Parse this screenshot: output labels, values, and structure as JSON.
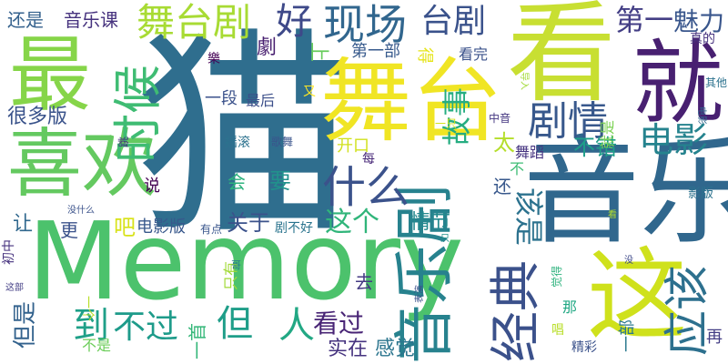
{
  "word_cloud": {
    "background": "#ffffff",
    "words": [
      {
        "text": "猫",
        "color": "#2f6e8e"
      },
      {
        "text": "Memory",
        "color": "#4cc26c"
      },
      {
        "text": "音乐",
        "color": "#30678d"
      },
      {
        "text": "看",
        "color": "#c8df32"
      },
      {
        "text": "舞台",
        "color": "#f0e524"
      },
      {
        "text": "就",
        "color": "#482071"
      },
      {
        "text": "这",
        "color": "#cfe11c"
      },
      {
        "text": "音乐剧",
        "color": "#27828e"
      },
      {
        "text": "最",
        "color": "#86d549"
      },
      {
        "text": "喜欢",
        "color": "#64c960"
      },
      {
        "text": "时候",
        "color": "#3fbc73"
      },
      {
        "text": "经典",
        "color": "#3b518b"
      },
      {
        "text": "应该",
        "color": "#2d708e"
      },
      {
        "text": "舞台剧",
        "color": "#a8db34"
      },
      {
        "text": "现场",
        "color": "#31668e"
      },
      {
        "text": "好",
        "color": "#3e4989"
      },
      {
        "text": "台剧",
        "color": "#3a528b"
      },
      {
        "text": "剧情",
        "color": "#38588c"
      },
      {
        "text": "电影",
        "color": "#25838e"
      },
      {
        "text": "什么",
        "color": "#3b528b"
      },
      {
        "text": "第一",
        "color": "#433e85"
      },
      {
        "text": "魅力",
        "color": "#39568c"
      },
      {
        "text": "还是",
        "color": "#34618d"
      },
      {
        "text": "音乐课",
        "color": "#46327e"
      },
      {
        "text": "很多版",
        "color": "#3a538b"
      },
      {
        "text": "故事",
        "color": "#26ad81"
      },
      {
        "text": "但",
        "color": "#1f9e89"
      },
      {
        "text": "到",
        "color": "#1fa088"
      },
      {
        "text": "不过",
        "color": "#1e9b8a"
      },
      {
        "text": "人",
        "color": "#22a884"
      },
      {
        "text": "看过",
        "color": "#482475"
      },
      {
        "text": "这个",
        "color": "#30b57a"
      },
      {
        "text": "该是",
        "color": "#2c728e"
      },
      {
        "text": "情节",
        "color": "#23888e"
      },
      {
        "text": "关于",
        "color": "#3b528b"
      },
      {
        "text": "电影版",
        "color": "#38588c"
      },
      {
        "text": "要",
        "color": "#21918c"
      },
      {
        "text": "感觉",
        "color": "#2b758e"
      },
      {
        "text": "实在",
        "color": "#46337f"
      },
      {
        "text": "但是",
        "color": "#33628d"
      },
      {
        "text": "不是",
        "color": "#6ccd5a"
      },
      {
        "text": "一首",
        "color": "#35b779"
      },
      {
        "text": "精彩",
        "color": "#3b528b"
      },
      {
        "text": "一部",
        "color": "#2a788e"
      },
      {
        "text": "再",
        "color": "#433e85"
      },
      {
        "text": "更",
        "color": "#3b528b"
      },
      {
        "text": "让",
        "color": "#31688e"
      },
      {
        "text": "吧",
        "color": "#d8e219"
      },
      {
        "text": "说",
        "color": "#440154"
      },
      {
        "text": "去",
        "color": "#443a83"
      },
      {
        "text": "会",
        "color": "#2db27d"
      },
      {
        "text": "太",
        "color": "#b5de2b"
      },
      {
        "text": "还",
        "color": "#38588c"
      },
      {
        "text": "不错",
        "color": "#1f9e89"
      },
      {
        "text": "舞蹈",
        "color": "#463480"
      },
      {
        "text": "每",
        "color": "#482878"
      },
      {
        "text": "不",
        "color": "#3dbc74"
      },
      {
        "text": "开口",
        "color": "#d0e11c"
      },
      {
        "text": "摇滚",
        "color": "#2c728e"
      },
      {
        "text": "歌舞",
        "color": "#3a548c"
      },
      {
        "text": "跳",
        "color": "#46327e"
      },
      {
        "text": "劇",
        "color": "#481f70"
      },
      {
        "text": "上",
        "color": "#67cc5c"
      },
      {
        "text": "樂",
        "color": "#440154"
      },
      {
        "text": "第一部",
        "color": "#375a8c"
      },
      {
        "text": "看完",
        "color": "#3b528b"
      },
      {
        "text": "得",
        "color": "#e5e419"
      },
      {
        "text": "一段",
        "color": "#3b528b"
      },
      {
        "text": "最后",
        "color": "#3c4f8a"
      },
      {
        "text": "又",
        "color": "#fde725"
      },
      {
        "text": "真的",
        "color": "#46327e"
      },
      {
        "text": "其他",
        "color": "#2c728e"
      },
      {
        "text": "影版",
        "color": "#2c728e"
      },
      {
        "text": "就是",
        "color": "#7ad151"
      },
      {
        "text": "中音",
        "color": "#453781"
      },
      {
        "text": "一只",
        "color": "#d2e21b"
      },
      {
        "text": "只有",
        "color": "#a2da37"
      },
      {
        "text": "有点",
        "color": "#39568c"
      },
      {
        "text": "剧不好",
        "color": "#2b748e"
      },
      {
        "text": "没什么",
        "color": "#3b528b"
      },
      {
        "text": "一个",
        "color": "#b8de29"
      },
      {
        "text": "唱",
        "color": "#b8de29"
      },
      {
        "text": "那",
        "color": "#22a884"
      },
      {
        "text": "觉得",
        "color": "#2db27d"
      },
      {
        "text": "表演",
        "color": "#3b528b"
      },
      {
        "text": "初中",
        "color": "#46327e"
      },
      {
        "text": "这部",
        "color": "#433e85"
      },
      {
        "text": "哥",
        "color": "#2a788e"
      },
      {
        "text": "只",
        "color": "#21918c"
      },
      {
        "text": "没",
        "color": "#3e4989"
      },
      {
        "text": "看",
        "color": "#b5de2b"
      },
      {
        "text": "电影",
        "color": "#31688e"
      },
      {
        "text": "导入",
        "color": "#a2da37"
      }
    ]
  }
}
